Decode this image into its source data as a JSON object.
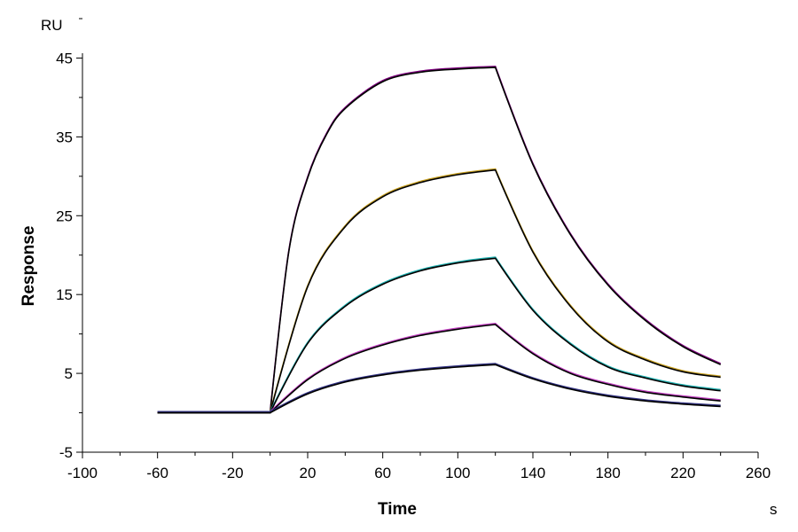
{
  "chart_data": {
    "type": "line",
    "title": "",
    "xlabel": "Time",
    "ylabel": "Response",
    "x_unit": "s",
    "y_unit": "RU",
    "xlim": [
      -100,
      260
    ],
    "ylim": [
      -5,
      50
    ],
    "x_ticks": [
      -100,
      -60,
      -20,
      20,
      60,
      100,
      140,
      180,
      220,
      260
    ],
    "y_ticks": [
      -5,
      5,
      15,
      25,
      35,
      45
    ],
    "grid": false,
    "legend": "none",
    "association_start": 0,
    "dissociation_start": 120,
    "end_time": 240,
    "baseline_start": -60,
    "series": [
      {
        "color": "#800080",
        "values": [
          [
            -60,
            0
          ],
          [
            0,
            0
          ],
          [
            10,
            20.5
          ],
          [
            20,
            29.8
          ],
          [
            30,
            35.3
          ],
          [
            40,
            38.6
          ],
          [
            60,
            42.0
          ],
          [
            80,
            43.2
          ],
          [
            100,
            43.6
          ],
          [
            120,
            43.8
          ],
          [
            140,
            31.5
          ],
          [
            160,
            22.6
          ],
          [
            180,
            16.2
          ],
          [
            200,
            11.7
          ],
          [
            220,
            8.4
          ],
          [
            240,
            6.1
          ]
        ]
      },
      {
        "color": "#c8a020",
        "values": [
          [
            -60,
            0
          ],
          [
            0,
            0
          ],
          [
            20,
            16.0
          ],
          [
            40,
            23.6
          ],
          [
            60,
            27.4
          ],
          [
            80,
            29.2
          ],
          [
            100,
            30.2
          ],
          [
            120,
            30.8
          ],
          [
            140,
            20.4
          ],
          [
            160,
            13.5
          ],
          [
            180,
            9.0
          ],
          [
            200,
            6.7
          ],
          [
            220,
            5.2
          ],
          [
            240,
            4.5
          ]
        ]
      },
      {
        "color": "#20b0b0",
        "values": [
          [
            -60,
            0
          ],
          [
            0,
            0
          ],
          [
            20,
            8.8
          ],
          [
            40,
            13.5
          ],
          [
            60,
            16.3
          ],
          [
            80,
            18.0
          ],
          [
            100,
            19.0
          ],
          [
            120,
            19.6
          ],
          [
            140,
            13.0
          ],
          [
            160,
            8.7
          ],
          [
            180,
            5.8
          ],
          [
            200,
            4.4
          ],
          [
            220,
            3.4
          ],
          [
            240,
            2.8
          ]
        ]
      },
      {
        "color": "#c040c0",
        "values": [
          [
            -60,
            0
          ],
          [
            0,
            0
          ],
          [
            20,
            4.2
          ],
          [
            40,
            6.9
          ],
          [
            60,
            8.6
          ],
          [
            80,
            9.8
          ],
          [
            100,
            10.6
          ],
          [
            120,
            11.2
          ],
          [
            140,
            7.5
          ],
          [
            160,
            5.0
          ],
          [
            180,
            3.6
          ],
          [
            200,
            2.6
          ],
          [
            220,
            2.0
          ],
          [
            240,
            1.5
          ]
        ]
      },
      {
        "color": "#303080",
        "values": [
          [
            -60,
            0
          ],
          [
            0,
            0
          ],
          [
            20,
            2.4
          ],
          [
            40,
            3.9
          ],
          [
            60,
            4.8
          ],
          [
            80,
            5.4
          ],
          [
            100,
            5.8
          ],
          [
            120,
            6.1
          ],
          [
            140,
            4.3
          ],
          [
            160,
            3.0
          ],
          [
            180,
            2.1
          ],
          [
            200,
            1.5
          ],
          [
            220,
            1.1
          ],
          [
            240,
            0.8
          ]
        ]
      }
    ]
  }
}
